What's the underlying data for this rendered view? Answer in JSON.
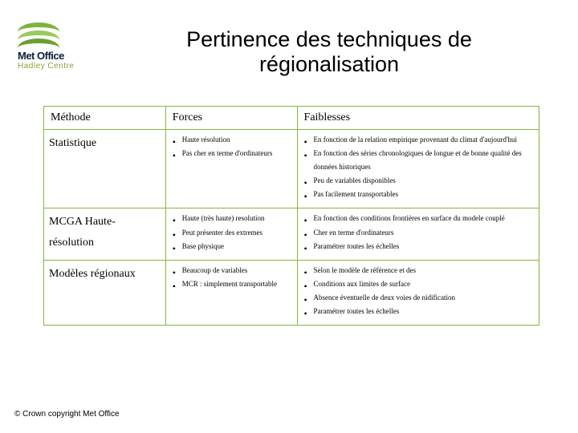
{
  "logo": {
    "name": "Met Office",
    "sub": "Hadley Centre"
  },
  "title": "Pertinence des techniques de régionalisation",
  "headers": {
    "method": "Méthode",
    "forces": "Forces",
    "weaknesses": "Faiblesses"
  },
  "rows": [
    {
      "method": "Statistique",
      "forces": [
        "Haute résolution",
        "Pas cher en terme d'ordinateurs"
      ],
      "weaknesses": [
        "En fonction de la relation empirique provenant du climat d'aujourd'hui",
        "En fonction des séries chronologiques de longue et de bonne qualité des données historiques",
        "Peu de variables disponibles",
        "Pas facilement transportables"
      ]
    },
    {
      "method": "MCGA Haute-résolution",
      "forces": [
        "Haute (très haute) resolution",
        "Peut présenter des extremes",
        "Base physique"
      ],
      "weaknesses": [
        "En fonction des conditions frontières en surface du modele couplé",
        "Cher en terme d'ordinateurs",
        "Paramétrer toutes les échelles"
      ]
    },
    {
      "method": "Modèles régionaux",
      "forces": [
        "Beaucoup de variables",
        "MCR : simplement transportable"
      ],
      "weaknesses": [
        "Selon le modèle de référence et des",
        "Conditions  aux limites de surface",
        "Absence éventuelle de deux voies de nidification",
        "Paramétrer toutes les échelles"
      ]
    }
  ],
  "copyright": "© Crown copyright   Met Office"
}
